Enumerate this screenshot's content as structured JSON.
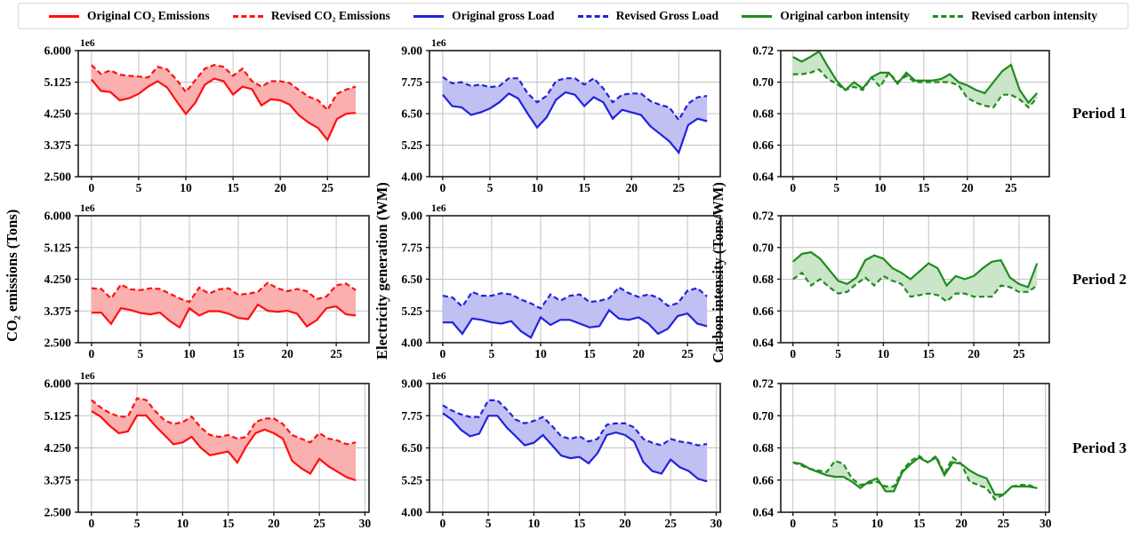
{
  "legend": {
    "items": [
      {
        "label": "Original CO₂ Emissions",
        "color": "#ff0f0f",
        "dash": false
      },
      {
        "label": "Revised CO₂ Emissions",
        "color": "#ff0f0f",
        "dash": true
      },
      {
        "label": "Original gross Load",
        "color": "#2222dd",
        "dash": false
      },
      {
        "label": "Revised Gross Load",
        "color": "#2222dd",
        "dash": true
      },
      {
        "label": "Original carbon intensity",
        "color": "#1e8c1e",
        "dash": false
      },
      {
        "label": "Revised carbon intensity",
        "color": "#1e8c1e",
        "dash": true
      }
    ]
  },
  "axis_labels": {
    "co2": "CO₂ emissions (Tons)",
    "electricity": "Electricity generation (WM)",
    "carbon": "Carbon intensity (Tons/WM)"
  },
  "row_labels": [
    "Period 1",
    "Period 2",
    "Period 3"
  ],
  "chart_data": [
    {
      "type": "area",
      "row": "Period 1",
      "measure": "CO2 emissions (Tons)",
      "line_color": "#ff0f0f",
      "fill_color": "#fbb0b0",
      "xlim": [
        -1.4,
        29.4
      ],
      "ylim": [
        2.5,
        6.0
      ],
      "xticks": [
        0,
        5,
        10,
        15,
        20,
        25
      ],
      "ytick_values": [
        2.5,
        3.375,
        4.25,
        5.125,
        6.0
      ],
      "ytick_labels": [
        "2.500",
        "3.375",
        "4.250",
        "5.125",
        "6.000"
      ],
      "offset_text": "1e6",
      "grid": true,
      "series": [
        {
          "name": "Original CO₂ Emissions",
          "style": "solid",
          "values": [
            5.2,
            4.88,
            4.85,
            4.62,
            4.68,
            4.8,
            5.0,
            5.15,
            4.98,
            4.6,
            4.24,
            4.55,
            5.05,
            5.22,
            5.15,
            4.78,
            5.0,
            4.93,
            4.48,
            4.65,
            4.62,
            4.5,
            4.2,
            4.0,
            3.85,
            3.52,
            4.1,
            4.25,
            4.27
          ]
        },
        {
          "name": "Revised CO₂ Emissions",
          "style": "dashed",
          "values": [
            5.6,
            5.35,
            5.45,
            5.33,
            5.3,
            5.28,
            5.25,
            5.55,
            5.48,
            5.2,
            4.85,
            5.18,
            5.5,
            5.6,
            5.55,
            5.3,
            5.5,
            5.15,
            5.0,
            5.15,
            5.15,
            5.1,
            4.9,
            4.72,
            4.62,
            4.35,
            4.8,
            4.92,
            5.0
          ]
        }
      ]
    },
    {
      "type": "area",
      "row": "Period 1",
      "measure": "Electricity generation (WM)",
      "line_color": "#2222dd",
      "fill_color": "#c0c0f2",
      "xlim": [
        -1.4,
        29.4
      ],
      "ylim": [
        4.0,
        9.0
      ],
      "xticks": [
        0,
        5,
        10,
        15,
        20,
        25
      ],
      "ytick_values": [
        4.0,
        5.25,
        6.5,
        7.75,
        9.0
      ],
      "ytick_labels": [
        "4.00",
        "5.25",
        "6.50",
        "7.75",
        "9.00"
      ],
      "offset_text": "1e6",
      "grid": true,
      "series": [
        {
          "name": "Original gross Load",
          "style": "solid",
          "values": [
            7.25,
            6.8,
            6.75,
            6.45,
            6.55,
            6.7,
            6.95,
            7.3,
            7.1,
            6.5,
            5.95,
            6.35,
            7.05,
            7.35,
            7.25,
            6.8,
            7.15,
            6.95,
            6.3,
            6.65,
            6.55,
            6.45,
            6.0,
            5.7,
            5.4,
            4.95,
            6.05,
            6.3,
            6.2
          ]
        },
        {
          "name": "Revised Gross Load",
          "style": "dashed",
          "values": [
            7.95,
            7.7,
            7.75,
            7.6,
            7.65,
            7.55,
            7.6,
            7.9,
            7.9,
            7.3,
            6.95,
            7.2,
            7.8,
            7.9,
            7.9,
            7.65,
            7.9,
            7.5,
            6.95,
            7.25,
            7.3,
            7.3,
            7.0,
            6.85,
            6.75,
            6.25,
            6.9,
            7.15,
            7.2
          ]
        }
      ]
    },
    {
      "type": "area",
      "row": "Period 1",
      "measure": "Carbon intensity (Tons/WM)",
      "line_color": "#1e8c1e",
      "fill_color": "#cbe5c9",
      "xlim": [
        -1.4,
        29.4
      ],
      "ylim": [
        0.64,
        0.72
      ],
      "xticks": [
        0,
        5,
        10,
        15,
        20,
        25
      ],
      "ytick_values": [
        0.64,
        0.66,
        0.68,
        0.7,
        0.72
      ],
      "ytick_labels": [
        "0.64",
        "0.66",
        "0.68",
        "0.70",
        "0.72"
      ],
      "offset_text": "",
      "grid": true,
      "series": [
        {
          "name": "Original carbon intensity",
          "style": "solid",
          "values": [
            0.716,
            0.713,
            0.716,
            0.7195,
            0.71,
            0.701,
            0.695,
            0.7,
            0.696,
            0.703,
            0.706,
            0.706,
            0.699,
            0.706,
            0.701,
            0.701,
            0.701,
            0.702,
            0.705,
            0.7,
            0.698,
            0.695,
            0.693,
            0.7,
            0.707,
            0.711,
            0.695,
            0.687,
            0.693
          ]
        },
        {
          "name": "Revised carbon intensity",
          "style": "dashed",
          "values": [
            0.705,
            0.705,
            0.706,
            0.708,
            0.702,
            0.699,
            0.695,
            0.697,
            0.695,
            0.703,
            0.697,
            0.706,
            0.7,
            0.704,
            0.7,
            0.7,
            0.7,
            0.7,
            0.7,
            0.698,
            0.69,
            0.687,
            0.685,
            0.684,
            0.692,
            0.692,
            0.689,
            0.684,
            0.69
          ]
        }
      ]
    },
    {
      "type": "area",
      "row": "Period 2",
      "measure": "CO2 emissions (Tons)",
      "line_color": "#ff0f0f",
      "fill_color": "#fbb0b0",
      "xlim": [
        -1.35,
        28.35
      ],
      "ylim": [
        2.5,
        6.0
      ],
      "xticks": [
        0,
        5,
        10,
        15,
        20,
        25
      ],
      "ytick_values": [
        2.5,
        3.375,
        4.25,
        5.125,
        6.0
      ],
      "ytick_labels": [
        "2.500",
        "3.375",
        "4.250",
        "5.125",
        "6.000"
      ],
      "offset_text": "1e6",
      "grid": true,
      "series": [
        {
          "name": "Original CO₂ Emissions",
          "style": "solid",
          "values": [
            3.33,
            3.33,
            3.02,
            3.45,
            3.4,
            3.32,
            3.28,
            3.33,
            3.1,
            2.92,
            3.45,
            3.25,
            3.37,
            3.37,
            3.3,
            3.18,
            3.15,
            3.55,
            3.38,
            3.35,
            3.38,
            3.3,
            2.95,
            3.12,
            3.45,
            3.5,
            3.28,
            3.25
          ]
        },
        {
          "name": "Revised CO₂ Emissions",
          "style": "dashed",
          "values": [
            4.0,
            3.98,
            3.72,
            4.1,
            3.97,
            3.95,
            4.0,
            3.98,
            3.85,
            3.72,
            3.62,
            4.02,
            3.85,
            3.97,
            4.0,
            3.82,
            3.85,
            3.9,
            4.15,
            4.0,
            3.92,
            3.98,
            3.92,
            3.7,
            3.77,
            4.08,
            4.13,
            3.95
          ]
        }
      ]
    },
    {
      "type": "area",
      "row": "Period 2",
      "measure": "Electricity generation (WM)",
      "line_color": "#2222dd",
      "fill_color": "#c0c0f2",
      "xlim": [
        -1.35,
        28.35
      ],
      "ylim": [
        4.0,
        9.0
      ],
      "xticks": [
        0,
        5,
        10,
        15,
        20,
        25
      ],
      "ytick_values": [
        4.0,
        5.25,
        6.5,
        7.75,
        9.0
      ],
      "ytick_labels": [
        "4.00",
        "5.25",
        "6.50",
        "7.75",
        "9.00"
      ],
      "offset_text": "1e6",
      "grid": true,
      "series": [
        {
          "name": "Original gross Load",
          "style": "solid",
          "values": [
            4.8,
            4.8,
            4.35,
            4.95,
            4.9,
            4.8,
            4.75,
            4.85,
            4.45,
            4.2,
            5.0,
            4.7,
            4.9,
            4.9,
            4.75,
            4.6,
            4.65,
            5.28,
            4.95,
            4.9,
            5.0,
            4.75,
            4.35,
            4.55,
            5.05,
            5.15,
            4.75,
            4.65
          ]
        },
        {
          "name": "Revised Gross Load",
          "style": "dashed",
          "values": [
            5.85,
            5.78,
            5.42,
            6.0,
            5.85,
            5.85,
            5.95,
            5.9,
            5.7,
            5.55,
            5.35,
            5.9,
            5.65,
            5.85,
            5.9,
            5.6,
            5.65,
            5.75,
            6.18,
            5.95,
            5.8,
            5.9,
            5.78,
            5.45,
            5.55,
            6.05,
            6.15,
            5.82
          ]
        }
      ]
    },
    {
      "type": "area",
      "row": "Period 2",
      "measure": "Carbon intensity (Tons/WM)",
      "line_color": "#1e8c1e",
      "fill_color": "#cbe5c9",
      "xlim": [
        -1.35,
        28.35
      ],
      "ylim": [
        0.64,
        0.72
      ],
      "xticks": [
        0,
        5,
        10,
        15,
        20,
        25
      ],
      "ytick_values": [
        0.64,
        0.66,
        0.68,
        0.7,
        0.72
      ],
      "ytick_labels": [
        "0.64",
        "0.66",
        "0.68",
        "0.70",
        "0.72"
      ],
      "offset_text": "",
      "grid": true,
      "series": [
        {
          "name": "Original carbon intensity",
          "style": "solid",
          "values": [
            0.691,
            0.696,
            0.697,
            0.693,
            0.686,
            0.679,
            0.677,
            0.681,
            0.692,
            0.695,
            0.693,
            0.687,
            0.684,
            0.68,
            0.685,
            0.69,
            0.687,
            0.676,
            0.682,
            0.68,
            0.682,
            0.687,
            0.691,
            0.692,
            0.681,
            0.677,
            0.675,
            0.69
          ]
        },
        {
          "name": "Revised carbon intensity",
          "style": "dashed",
          "values": [
            0.68,
            0.684,
            0.676,
            0.68,
            0.675,
            0.671,
            0.672,
            0.677,
            0.681,
            0.676,
            0.682,
            0.679,
            0.677,
            0.669,
            0.67,
            0.671,
            0.67,
            0.666,
            0.671,
            0.671,
            0.669,
            0.669,
            0.669,
            0.676,
            0.675,
            0.672,
            0.672,
            0.676
          ]
        }
      ]
    },
    {
      "type": "area",
      "row": "Period 3",
      "measure": "CO2 emissions (Tons)",
      "line_color": "#ff0f0f",
      "fill_color": "#fbb0b0",
      "xlim": [
        -1.45,
        30.45
      ],
      "ylim": [
        2.5,
        6.0
      ],
      "xticks": [
        0,
        5,
        10,
        15,
        20,
        25,
        30
      ],
      "ytick_values": [
        2.5,
        3.375,
        4.25,
        5.125,
        6.0
      ],
      "ytick_labels": [
        "2.500",
        "3.375",
        "4.250",
        "5.125",
        "6.000"
      ],
      "offset_text": "1e6",
      "grid": true,
      "series": [
        {
          "name": "Original CO₂ Emissions",
          "style": "solid",
          "values": [
            5.25,
            5.1,
            4.85,
            4.65,
            4.7,
            5.13,
            5.13,
            4.85,
            4.6,
            4.35,
            4.4,
            4.55,
            4.25,
            4.05,
            4.1,
            4.15,
            3.85,
            4.3,
            4.65,
            4.75,
            4.65,
            4.5,
            3.9,
            3.7,
            3.55,
            3.95,
            3.75,
            3.6,
            3.45,
            3.37
          ]
        },
        {
          "name": "Revised CO₂ Emissions",
          "style": "dashed",
          "values": [
            5.55,
            5.35,
            5.2,
            5.1,
            5.1,
            5.6,
            5.55,
            5.25,
            5.0,
            4.9,
            4.95,
            5.1,
            4.8,
            4.6,
            4.55,
            4.6,
            4.5,
            4.55,
            4.95,
            5.05,
            5.05,
            4.9,
            4.6,
            4.5,
            4.4,
            4.65,
            4.5,
            4.45,
            4.35,
            4.4
          ]
        }
      ]
    },
    {
      "type": "area",
      "row": "Period 3",
      "measure": "Electricity generation (WM)",
      "line_color": "#2222dd",
      "fill_color": "#c0c0f2",
      "xlim": [
        -1.45,
        30.45
      ],
      "ylim": [
        4.0,
        9.0
      ],
      "xticks": [
        0,
        5,
        10,
        15,
        20,
        25,
        30
      ],
      "ytick_values": [
        4.0,
        5.25,
        6.5,
        7.75,
        9.0
      ],
      "ytick_labels": [
        "4.00",
        "5.25",
        "6.50",
        "7.75",
        "9.00"
      ],
      "offset_text": "1e6",
      "grid": true,
      "series": [
        {
          "name": "Original gross Load",
          "style": "solid",
          "values": [
            7.85,
            7.6,
            7.2,
            6.95,
            7.05,
            7.75,
            7.75,
            7.3,
            6.95,
            6.6,
            6.7,
            7.0,
            6.6,
            6.2,
            6.1,
            6.15,
            5.9,
            6.3,
            7.0,
            7.1,
            7.0,
            6.75,
            5.95,
            5.6,
            5.5,
            6.05,
            5.75,
            5.6,
            5.3,
            5.2
          ]
        },
        {
          "name": "Revised Gross Load",
          "style": "dashed",
          "values": [
            8.15,
            7.95,
            7.8,
            7.7,
            7.7,
            8.35,
            8.35,
            8.0,
            7.6,
            7.45,
            7.55,
            7.7,
            7.35,
            6.95,
            6.85,
            6.95,
            6.75,
            6.85,
            7.4,
            7.45,
            7.45,
            7.3,
            6.85,
            6.7,
            6.6,
            6.85,
            6.75,
            6.7,
            6.6,
            6.65
          ]
        }
      ]
    },
    {
      "type": "area",
      "row": "Period 3",
      "measure": "Carbon intensity (Tons/WM)",
      "line_color": "#1e8c1e",
      "fill_color": "#cbe5c9",
      "xlim": [
        -1.45,
        30.45
      ],
      "ylim": [
        0.64,
        0.72
      ],
      "xticks": [
        0,
        5,
        10,
        15,
        20,
        25,
        30
      ],
      "ytick_values": [
        0.64,
        0.66,
        0.68,
        0.7,
        0.72
      ],
      "ytick_labels": [
        "0.64",
        "0.66",
        "0.68",
        "0.70",
        "0.72"
      ],
      "offset_text": "",
      "grid": true,
      "series": [
        {
          "name": "Original carbon intensity",
          "style": "solid",
          "values": [
            0.671,
            0.67,
            0.667,
            0.665,
            0.663,
            0.662,
            0.662,
            0.659,
            0.655,
            0.659,
            0.661,
            0.653,
            0.653,
            0.665,
            0.67,
            0.674,
            0.671,
            0.674,
            0.663,
            0.671,
            0.67,
            0.666,
            0.663,
            0.661,
            0.651,
            0.651,
            0.656,
            0.656,
            0.656,
            0.655
          ]
        },
        {
          "name": "Revised carbon intensity",
          "style": "dashed",
          "values": [
            0.671,
            0.669,
            0.667,
            0.666,
            0.665,
            0.672,
            0.67,
            0.661,
            0.657,
            0.658,
            0.659,
            0.656,
            0.656,
            0.666,
            0.672,
            0.675,
            0.671,
            0.675,
            0.664,
            0.674,
            0.67,
            0.659,
            0.657,
            0.655,
            0.648,
            0.651,
            0.656,
            0.657,
            0.657,
            0.655
          ]
        }
      ]
    }
  ]
}
